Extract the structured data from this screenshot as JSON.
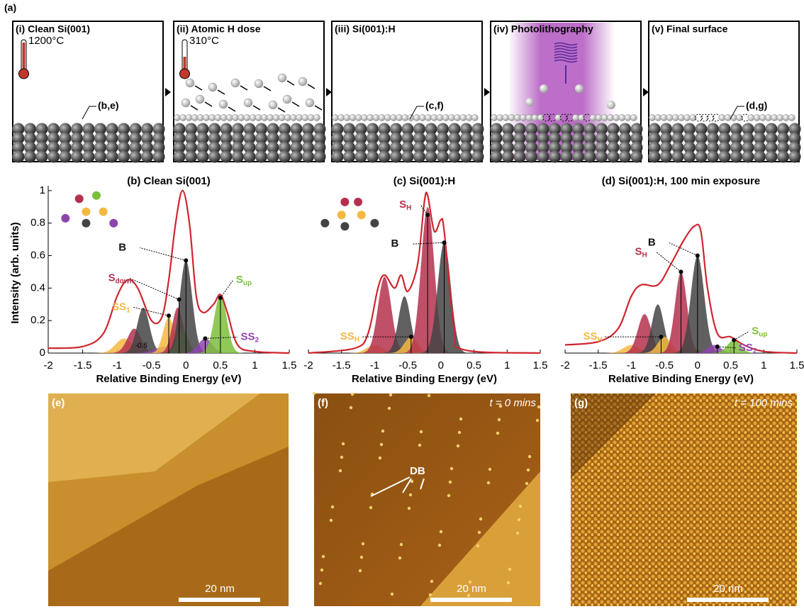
{
  "figure_label": "(a)",
  "schematic": {
    "panels": [
      {
        "title": "(i) Clean Si(001)",
        "temperature": "1200°C",
        "ref": "(b,e)"
      },
      {
        "title": "(ii) Atomic H dose",
        "temperature": "310°C"
      },
      {
        "title": "(iii) Si(001):H",
        "ref": "(c,f)"
      },
      {
        "title": "(iv) Photolithography"
      },
      {
        "title": "(v) Final surface",
        "ref": "(d,g)"
      }
    ]
  },
  "chart_data": [
    {
      "type": "line",
      "title": "(b) Clean Si(001)",
      "x_label": "Relative Binding Energy (eV)",
      "y_label": "Intensity (arb. units)",
      "xlim": [
        -2,
        1.5
      ],
      "xticks": [
        -2,
        -1.5,
        -1,
        -0.5,
        0,
        0.5,
        1,
        1.5
      ],
      "ylim": [
        0,
        1.03
      ],
      "yticks": [
        0,
        0.2,
        0.4,
        0.6,
        0.8,
        1
      ],
      "annotation": "-0.5",
      "envelope": {
        "color": "#d0252f",
        "x": [
          -2,
          -1.5,
          -1.2,
          -1.0,
          -0.85,
          -0.7,
          -0.5,
          -0.35,
          -0.25,
          -0.15,
          -0.05,
          0.05,
          0.15,
          0.25,
          0.4,
          0.5,
          0.6,
          0.75,
          1.0,
          1.5
        ],
        "y": [
          0.03,
          0.04,
          0.12,
          0.35,
          0.45,
          0.4,
          0.2,
          0.22,
          0.45,
          0.8,
          1.0,
          0.8,
          0.35,
          0.25,
          0.3,
          0.36,
          0.25,
          0.05,
          0.01,
          0
        ]
      },
      "components": [
        {
          "color": "#f4b942",
          "center": -0.9,
          "height": 0.09,
          "width": 0.12
        },
        {
          "color": "#b5304e",
          "center": -0.75,
          "height": 0.15,
          "width": 0.1
        },
        {
          "color": "#444444",
          "center": -0.62,
          "height": 0.28,
          "width": 0.09
        },
        {
          "color": "#8e44ad",
          "center": -0.3,
          "height": 0.04,
          "width": 0.15
        },
        {
          "color": "#f4b942",
          "center": -0.25,
          "height": 0.22,
          "width": 0.08
        },
        {
          "color": "#b5304e",
          "center": -0.12,
          "height": 0.28,
          "width": 0.08
        },
        {
          "color": "#7cbf3a",
          "center": -0.05,
          "height": 0.15,
          "width": 0.08
        },
        {
          "color": "#444444",
          "center": 0,
          "height": 0.57,
          "width": 0.09
        },
        {
          "color": "#8e44ad",
          "center": 0.28,
          "height": 0.09,
          "width": 0.1
        },
        {
          "color": "#7cbf3a",
          "center": 0.5,
          "height": 0.36,
          "width": 0.09
        }
      ],
      "peak_labels": [
        {
          "main": "B",
          "color": "#111111",
          "x": 0,
          "y": 0.57
        },
        {
          "main": "S",
          "sub": "down",
          "color": "#b5304e",
          "x": -0.1,
          "y": 0.33
        },
        {
          "main": "S",
          "sub": "up",
          "color": "#7cbf3a",
          "x": 0.5,
          "y": 0.34
        },
        {
          "main": "SS",
          "sub": "1",
          "color": "#f4b942",
          "x": -0.25,
          "y": 0.23
        },
        {
          "main": "SS",
          "sub": "2",
          "color": "#8e44ad",
          "x": 0.28,
          "y": 0.09
        }
      ]
    },
    {
      "type": "line",
      "title": "(c) Si(001):H",
      "x_label": "Relative Binding Energy (eV)",
      "xlim": [
        -2,
        1.5
      ],
      "xticks": [
        -2,
        -1.5,
        -1,
        -0.5,
        0,
        0.5,
        1,
        1.5
      ],
      "ylim": [
        0,
        1.03
      ],
      "envelope": {
        "color": "#d0252f",
        "x": [
          -2,
          -1.3,
          -1.1,
          -0.95,
          -0.85,
          -0.7,
          -0.6,
          -0.5,
          -0.35,
          -0.25,
          -0.2,
          -0.1,
          0,
          0.05,
          0.2,
          0.35,
          1.5
        ],
        "y": [
          0,
          0.03,
          0.12,
          0.4,
          0.48,
          0.4,
          0.48,
          0.38,
          0.55,
          0.93,
          0.97,
          0.75,
          0.82,
          0.75,
          0.15,
          0.02,
          0
        ]
      },
      "components": [
        {
          "color": "#f4b942",
          "center": -1.0,
          "height": 0.05,
          "width": 0.12
        },
        {
          "color": "#b5304e",
          "center": -0.85,
          "height": 0.47,
          "width": 0.1
        },
        {
          "color": "#444444",
          "center": -0.55,
          "height": 0.35,
          "width": 0.09
        },
        {
          "color": "#f4b942",
          "center": -0.45,
          "height": 0.1,
          "width": 0.1
        },
        {
          "color": "#b5304e",
          "center": -0.2,
          "height": 0.9,
          "width": 0.1
        },
        {
          "color": "#444444",
          "center": 0.05,
          "height": 0.68,
          "width": 0.1
        }
      ],
      "peak_labels": [
        {
          "main": "S",
          "sub": "H",
          "color": "#b5304e",
          "x": -0.2,
          "y": 0.85
        },
        {
          "main": "B",
          "color": "#111111",
          "x": 0.05,
          "y": 0.68
        },
        {
          "main": "SS",
          "sub": "H",
          "color": "#f4b942",
          "x": -0.45,
          "y": 0.1
        }
      ]
    },
    {
      "type": "line",
      "title": "(d) Si(001):H, 100 min exposure",
      "x_label": "Relative Binding Energy (eV)",
      "xlim": [
        -2,
        1.5
      ],
      "xticks": [
        -2,
        -1.5,
        -1,
        -0.5,
        0,
        0.5,
        1,
        1.5
      ],
      "ylim": [
        0,
        1.03
      ],
      "envelope": {
        "color": "#d0252f",
        "x": [
          -2,
          -1.5,
          -1.2,
          -1.0,
          -0.85,
          -0.6,
          -0.4,
          -0.2,
          -0.05,
          0.05,
          0.15,
          0.3,
          0.5,
          0.7,
          1.0,
          1.5
        ],
        "y": [
          0.05,
          0.07,
          0.15,
          0.35,
          0.42,
          0.42,
          0.55,
          0.7,
          0.78,
          0.75,
          0.4,
          0.12,
          0.1,
          0.05,
          0.01,
          0
        ]
      },
      "components": [
        {
          "color": "#f4b942",
          "center": -1.0,
          "height": 0.05,
          "width": 0.12
        },
        {
          "color": "#b5304e",
          "center": -0.8,
          "height": 0.24,
          "width": 0.1
        },
        {
          "color": "#444444",
          "center": -0.6,
          "height": 0.3,
          "width": 0.09
        },
        {
          "color": "#f4b942",
          "center": -0.5,
          "height": 0.1,
          "width": 0.1
        },
        {
          "color": "#7cbf3a",
          "center": -0.1,
          "height": 0.03,
          "width": 0.12
        },
        {
          "color": "#b5304e",
          "center": -0.25,
          "height": 0.5,
          "width": 0.09
        },
        {
          "color": "#444444",
          "center": 0,
          "height": 0.6,
          "width": 0.1
        },
        {
          "color": "#8e44ad",
          "center": 0.25,
          "height": 0.05,
          "width": 0.1
        },
        {
          "color": "#7cbf3a",
          "center": 0.55,
          "height": 0.08,
          "width": 0.1
        }
      ],
      "peak_labels": [
        {
          "main": "B",
          "color": "#111111",
          "x": 0,
          "y": 0.6
        },
        {
          "main": "S",
          "sub": "H",
          "color": "#b5304e",
          "x": -0.25,
          "y": 0.5
        },
        {
          "main": "SS",
          "sub": "H",
          "color": "#f4b942",
          "x": -0.55,
          "y": 0.1
        },
        {
          "main": "S",
          "sub": "up",
          "color": "#7cbf3a",
          "x": 0.55,
          "y": 0.08
        },
        {
          "main": "SS",
          "sub": "2",
          "color": "#8e44ad",
          "x": 0.3,
          "y": 0.04
        }
      ]
    }
  ],
  "images": [
    {
      "label": "(e)",
      "scale_bar": "20 nm"
    },
    {
      "label": "(f)",
      "time": "t = 0 mins",
      "annotation": "DB",
      "scale_bar": "20 nm"
    },
    {
      "label": "(g)",
      "time": "t = 100 mins",
      "scale_bar": "20 nm"
    }
  ]
}
